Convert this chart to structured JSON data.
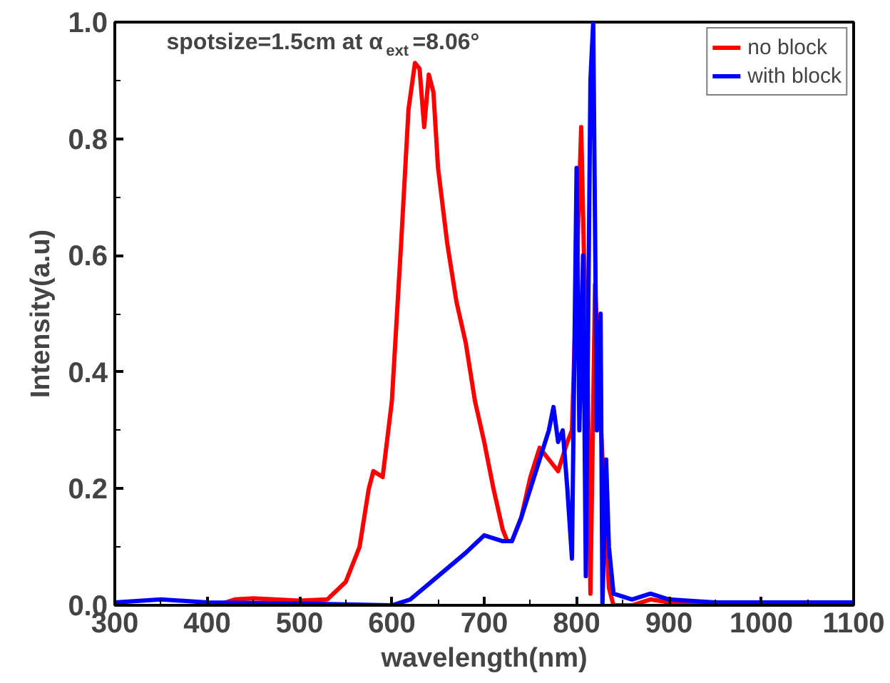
{
  "chart_data": {
    "type": "line",
    "xlabel": "wavelength(nm)",
    "ylabel": "Intensity(a.u)",
    "annotations": [
      "spotsize=1.5cm at α$_{ext}$=8.06°"
    ],
    "xlim": [
      300,
      1100
    ],
    "ylim": [
      0,
      1.0
    ],
    "xticks": [
      300,
      400,
      500,
      600,
      700,
      800,
      900,
      1000,
      1100
    ],
    "yticks": [
      {
        "value": 0,
        "label": "0.0"
      },
      {
        "value": 0.2,
        "label": "0.2"
      },
      {
        "value": 0.4,
        "label": "0.4"
      },
      {
        "value": 0.6,
        "label": "0.6"
      },
      {
        "value": 0.8,
        "label": "0.8"
      },
      {
        "value": 1.0,
        "label": "1.0"
      }
    ],
    "grid": false,
    "legend": "top right",
    "series": [
      {
        "name": "no block",
        "color": "#ff0000",
        "x": [
          410,
          430,
          450,
          500,
          530,
          550,
          565,
          575,
          580,
          590,
          600,
          610,
          618,
          625,
          630,
          635,
          640,
          645,
          650,
          660,
          670,
          680,
          690,
          700,
          710,
          720,
          725,
          730,
          740,
          750,
          760,
          770,
          780,
          790,
          795,
          805,
          808,
          812,
          815,
          820,
          825,
          835,
          840,
          860,
          880,
          900,
          950
        ],
        "values": [
          0,
          0.01,
          0.012,
          0.008,
          0.01,
          0.04,
          0.1,
          0.2,
          0.23,
          0.22,
          0.35,
          0.62,
          0.85,
          0.93,
          0.92,
          0.82,
          0.91,
          0.88,
          0.75,
          0.62,
          0.52,
          0.45,
          0.35,
          0.28,
          0.2,
          0.13,
          0.11,
          0.11,
          0.15,
          0.22,
          0.27,
          0.25,
          0.23,
          0.28,
          0.3,
          0.82,
          0.6,
          0.4,
          0.02,
          0.55,
          0.35,
          0.03,
          0,
          0,
          0.01,
          0.005,
          0
        ]
      },
      {
        "name": "with block",
        "color": "#0000ff",
        "x": [
          300,
          350,
          400,
          500,
          600,
          620,
          650,
          680,
          700,
          720,
          730,
          740,
          760,
          770,
          775,
          780,
          785,
          790,
          795,
          800,
          803,
          807,
          810,
          815,
          818,
          822,
          826,
          828,
          832,
          835,
          840,
          860,
          880,
          900,
          950,
          1100
        ],
        "values": [
          0.005,
          0.01,
          0.005,
          0.003,
          0,
          0.01,
          0.05,
          0.09,
          0.12,
          0.11,
          0.11,
          0.15,
          0.25,
          0.3,
          0.34,
          0.28,
          0.3,
          0.2,
          0.08,
          0.75,
          0.3,
          0.6,
          0.05,
          0.9,
          1.0,
          0.3,
          0.5,
          0,
          0.25,
          0.1,
          0.02,
          0.01,
          0.02,
          0.01,
          0.005,
          0.005
        ]
      }
    ]
  }
}
